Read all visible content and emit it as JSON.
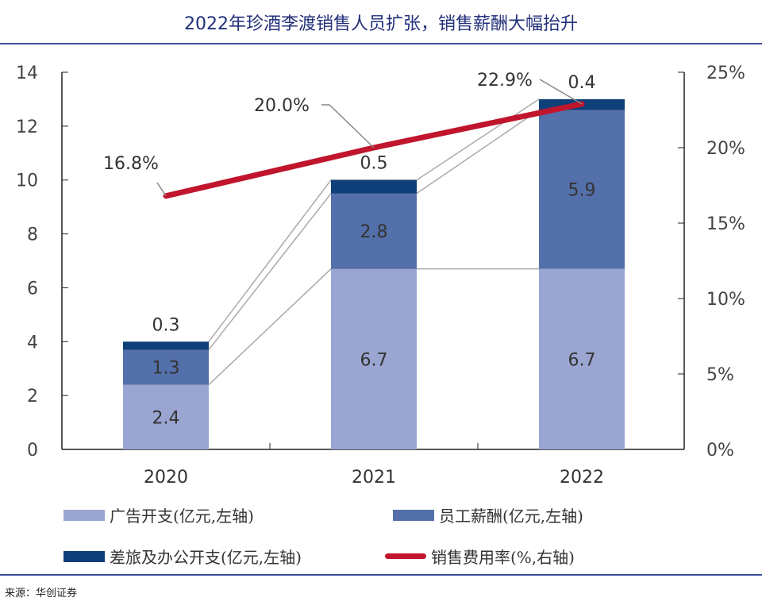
{
  "title": "2022年珍酒李渡销售人员扩张，销售薪酬大幅抬升",
  "source": "来源：华创证券",
  "chart_data": {
    "type": "bar",
    "stacked": true,
    "categories": [
      "2020",
      "2021",
      "2022"
    ],
    "series": [
      {
        "name": "广告开支(亿元,左轴)",
        "values": [
          2.4,
          6.7,
          6.7
        ],
        "color": "#9aa5d2",
        "axis": "left"
      },
      {
        "name": "员工薪酬(亿元,左轴)",
        "values": [
          1.3,
          2.8,
          5.9
        ],
        "color": "#5470aa",
        "axis": "left"
      },
      {
        "name": "差旅及办公开支(亿元,左轴)",
        "values": [
          0.3,
          0.5,
          0.4
        ],
        "color": "#0f3f78",
        "axis": "left"
      },
      {
        "name": "销售费用率(%,右轴)",
        "type": "line",
        "values": [
          16.8,
          20.0,
          22.9
        ],
        "labels": [
          "16.8%",
          "20.0%",
          "22.9%"
        ],
        "color": "#c0152c",
        "axis": "right"
      }
    ],
    "left_axis": {
      "ylim": [
        0,
        14
      ],
      "ticks": [
        "0",
        "2",
        "4",
        "6",
        "8",
        "10",
        "12",
        "14"
      ]
    },
    "right_axis": {
      "ylim": [
        0,
        25
      ],
      "ticks": [
        "0%",
        "5%",
        "10%",
        "15%",
        "20%",
        "25%"
      ]
    },
    "grid": false,
    "legend": "bottom"
  }
}
